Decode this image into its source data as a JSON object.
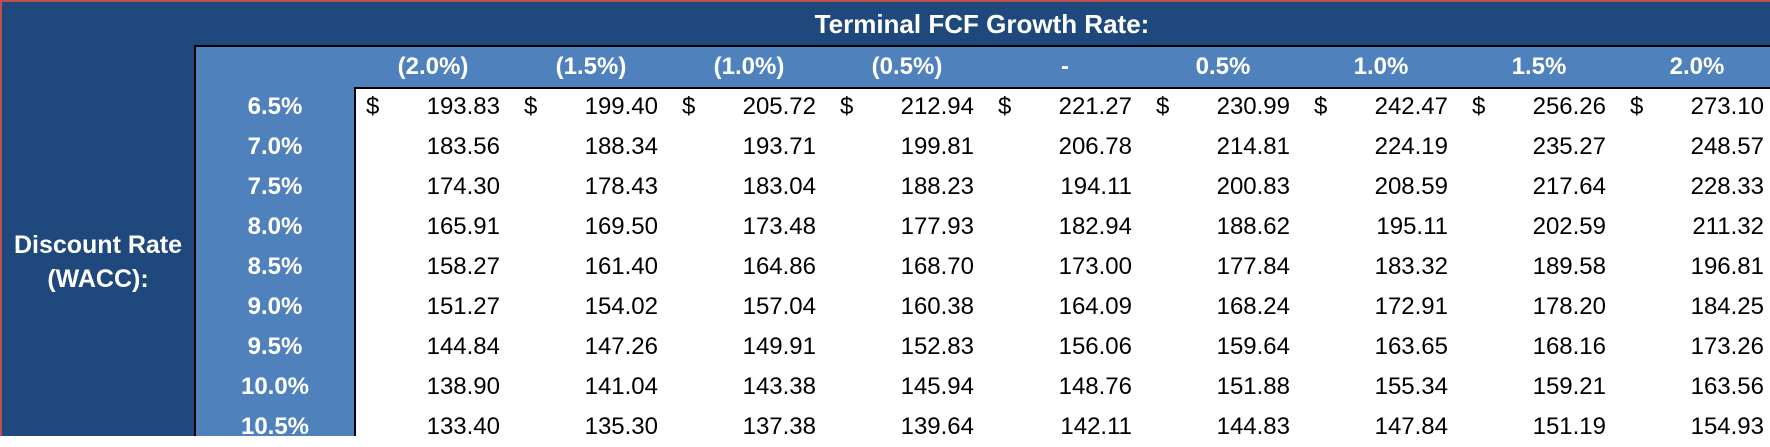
{
  "title": "Terminal FCF Growth Rate:",
  "side_label_line1": "Discount Rate",
  "side_label_line2": "(WACC):",
  "currency_symbol": "$",
  "growth_rates": [
    "(2.0%)",
    "(1.5%)",
    "(1.0%)",
    "(0.5%)",
    "-",
    "0.5%",
    "1.0%",
    "1.5%",
    "2.0%"
  ],
  "discount_rates": [
    "6.5%",
    "7.0%",
    "7.5%",
    "8.0%",
    "8.5%",
    "9.0%",
    "9.5%",
    "10.0%",
    "10.5%"
  ],
  "values": [
    [
      "193.83",
      "199.40",
      "205.72",
      "212.94",
      "221.27",
      "230.99",
      "242.47",
      "256.26",
      "273.10"
    ],
    [
      "183.56",
      "188.34",
      "193.71",
      "199.81",
      "206.78",
      "214.81",
      "224.19",
      "235.27",
      "248.57"
    ],
    [
      "174.30",
      "178.43",
      "183.04",
      "188.23",
      "194.11",
      "200.83",
      "208.59",
      "217.64",
      "228.33"
    ],
    [
      "165.91",
      "169.50",
      "173.48",
      "177.93",
      "182.94",
      "188.62",
      "195.11",
      "202.59",
      "211.32"
    ],
    [
      "158.27",
      "161.40",
      "164.86",
      "168.70",
      "173.00",
      "177.84",
      "183.32",
      "189.58",
      "196.81"
    ],
    [
      "151.27",
      "154.02",
      "157.04",
      "160.38",
      "164.09",
      "168.24",
      "172.91",
      "178.20",
      "184.25"
    ],
    [
      "144.84",
      "147.26",
      "149.91",
      "152.83",
      "156.06",
      "159.64",
      "163.65",
      "168.16",
      "173.26"
    ],
    [
      "138.90",
      "141.04",
      "143.38",
      "145.94",
      "148.76",
      "151.88",
      "155.34",
      "159.21",
      "163.56"
    ],
    [
      "133.40",
      "135.30",
      "137.38",
      "139.64",
      "142.11",
      "144.83",
      "147.84",
      "151.19",
      "154.93"
    ]
  ],
  "colors": {
    "dark_blue": "#1F497D",
    "mid_blue": "#4F81BD",
    "accent_red": "#C0504D"
  }
}
